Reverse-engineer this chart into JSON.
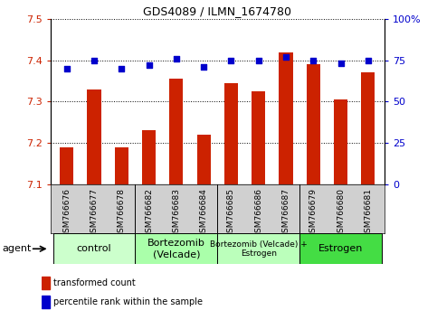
{
  "title": "GDS4089 / ILMN_1674780",
  "samples": [
    "GSM766676",
    "GSM766677",
    "GSM766678",
    "GSM766682",
    "GSM766683",
    "GSM766684",
    "GSM766685",
    "GSM766686",
    "GSM766687",
    "GSM766679",
    "GSM766680",
    "GSM766681"
  ],
  "bar_values": [
    7.19,
    7.33,
    7.19,
    7.23,
    7.355,
    7.22,
    7.345,
    7.325,
    7.42,
    7.39,
    7.305,
    7.37
  ],
  "percentile_values": [
    70,
    75,
    70,
    72,
    76,
    71,
    75,
    75,
    77,
    75,
    73,
    75
  ],
  "bar_color": "#cc2200",
  "dot_color": "#0000cc",
  "ylim_left": [
    7.1,
    7.5
  ],
  "ylim_right": [
    0,
    100
  ],
  "yticks_left": [
    7.1,
    7.2,
    7.3,
    7.4,
    7.5
  ],
  "yticks_right": [
    0,
    25,
    50,
    75,
    100
  ],
  "groups": [
    {
      "label": "control",
      "start": 0,
      "end": 3,
      "color": "#ccffcc",
      "fontsize": 8
    },
    {
      "label": "Bortezomib\n(Velcade)",
      "start": 3,
      "end": 6,
      "color": "#aaffaa",
      "fontsize": 8
    },
    {
      "label": "Bortezomib (Velcade) +\nEstrogen",
      "start": 6,
      "end": 9,
      "color": "#bbffbb",
      "fontsize": 6.5
    },
    {
      "label": "Estrogen",
      "start": 9,
      "end": 12,
      "color": "#44dd44",
      "fontsize": 8
    }
  ],
  "agent_label": "agent",
  "legend_bar_label": "transformed count",
  "legend_dot_label": "percentile rank within the sample",
  "xtick_bg": "#d0d0d0",
  "sample_fontsize": 6.5,
  "bar_width": 0.5
}
